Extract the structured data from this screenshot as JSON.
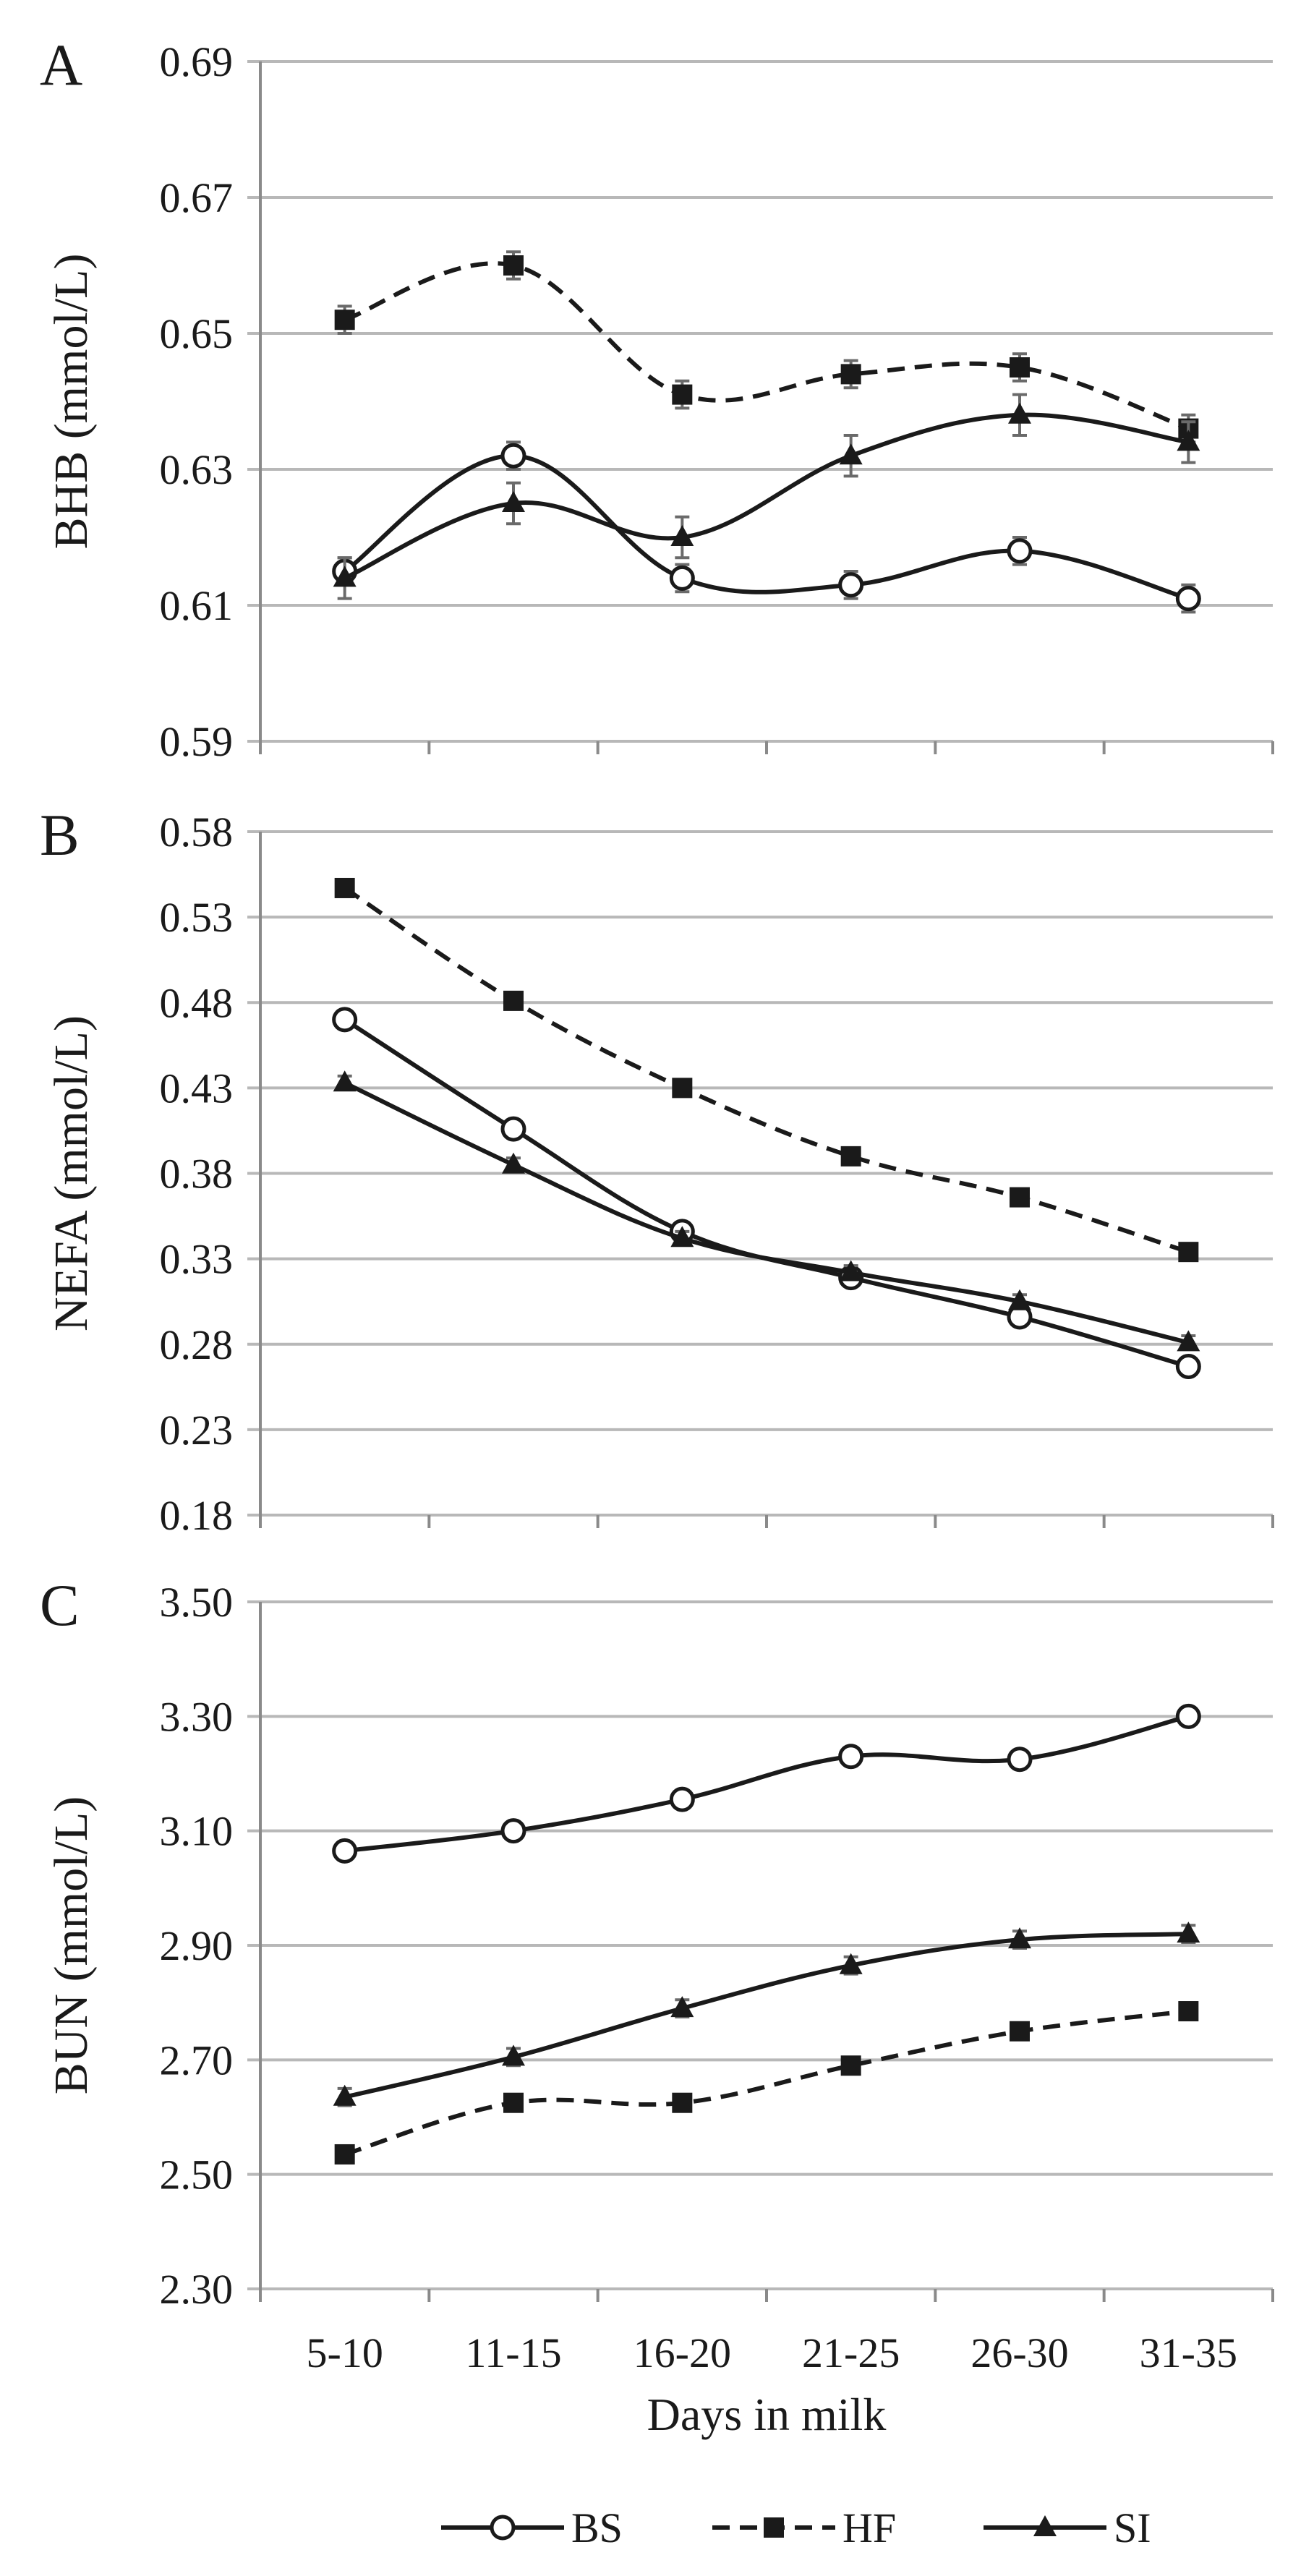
{
  "chart_data": {
    "type": "line",
    "x_categories": [
      "5-10",
      "11-15",
      "16-20",
      "21-25",
      "26-30",
      "31-35"
    ],
    "xlabel": "Days in milk",
    "legend": [
      {
        "name": "BS",
        "marker": "circle-open",
        "line": "solid"
      },
      {
        "name": "HF",
        "marker": "square-filled",
        "line": "dashed"
      },
      {
        "name": "SI",
        "marker": "triangle-filled",
        "line": "solid"
      }
    ],
    "legend_position": "bottom",
    "panels": [
      {
        "letter": "A",
        "ylabel": "BHB (mmol/L)",
        "ylim": [
          0.59,
          0.69
        ],
        "yticks": [
          "0.69",
          "0.67",
          "0.65",
          "0.63",
          "0.61",
          "0.59"
        ],
        "series": [
          {
            "name": "BS",
            "values": [
              0.615,
              0.632,
              0.614,
              0.613,
              0.618,
              0.611
            ],
            "err": 0.002
          },
          {
            "name": "HF",
            "values": [
              0.652,
              0.66,
              0.641,
              0.644,
              0.645,
              0.636
            ],
            "err": 0.002
          },
          {
            "name": "SI",
            "values": [
              0.614,
              0.625,
              0.62,
              0.632,
              0.638,
              0.634
            ],
            "err": 0.003
          }
        ]
      },
      {
        "letter": "B",
        "ylabel": "NEFA (mmol/L)",
        "ylim": [
          0.18,
          0.58
        ],
        "yticks": [
          "0.58",
          "0.53",
          "0.48",
          "0.43",
          "0.38",
          "0.33",
          "0.28",
          "0.23",
          "0.18"
        ],
        "series": [
          {
            "name": "BS",
            "values": [
              0.47,
              0.406,
              0.346,
              0.319,
              0.296,
              0.267
            ],
            "err": 0.004
          },
          {
            "name": "HF",
            "values": [
              0.547,
              0.481,
              0.43,
              0.39,
              0.366,
              0.334
            ],
            "err": 0.003
          },
          {
            "name": "SI",
            "values": [
              0.433,
              0.385,
              0.342,
              0.322,
              0.305,
              0.281
            ],
            "err": 0.004
          }
        ]
      },
      {
        "letter": "C",
        "ylabel": "BUN (mmol/L)",
        "ylim": [
          2.3,
          3.5
        ],
        "yticks": [
          "3.50",
          "3.30",
          "3.10",
          "2.90",
          "2.70",
          "2.50",
          "2.30"
        ],
        "series": [
          {
            "name": "BS",
            "values": [
              3.065,
              3.1,
              3.155,
              3.23,
              3.225,
              3.3
            ],
            "err": 0.01
          },
          {
            "name": "HF",
            "values": [
              2.535,
              2.625,
              2.625,
              2.69,
              2.75,
              2.785
            ],
            "err": 0.01
          },
          {
            "name": "SI",
            "values": [
              2.635,
              2.705,
              2.79,
              2.865,
              2.91,
              2.92
            ],
            "err": 0.015
          }
        ]
      }
    ]
  }
}
